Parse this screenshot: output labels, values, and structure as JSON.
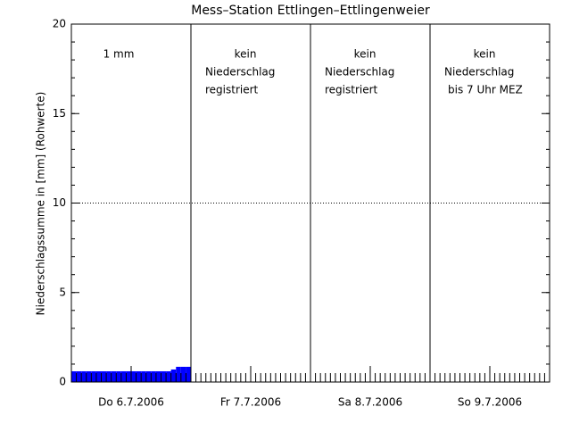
{
  "chart_data": {
    "type": "bar",
    "title": "Mess–Station Ettlingen–Ettlingenweier",
    "y_label": "Niederschlagssumme in [mm] (Rohwerte)",
    "categories": [
      "Do 6.7.2006",
      "Fr 7.7.2006",
      "Sa 8.7.2006",
      "So 9.7.2006"
    ],
    "annotations": [
      [
        "1 mm"
      ],
      [
        "kein",
        "Niederschlag",
        "registriert"
      ],
      [
        "kein",
        "Niederschlag",
        "registriert"
      ],
      [
        "kein",
        "Niederschlag",
        "bis 7 Uhr MEZ"
      ]
    ],
    "x": [
      0,
      1,
      2,
      3,
      4,
      5,
      6,
      7,
      8,
      9,
      10,
      11,
      12,
      13,
      14,
      15,
      16,
      17,
      18,
      19,
      20,
      21,
      22,
      23
    ],
    "values": [
      0.6,
      0.6,
      0.6,
      0.6,
      0.6,
      0.6,
      0.6,
      0.6,
      0.6,
      0.6,
      0.6,
      0.6,
      0.6,
      0.6,
      0.6,
      0.6,
      0.6,
      0.6,
      0.6,
      0.6,
      0.7,
      0.85,
      0.85,
      0.85
    ],
    "color": "#0000ff",
    "xlim": [
      0,
      96
    ],
    "ylim": [
      0,
      20
    ],
    "yticks": [
      0,
      5,
      10,
      15,
      20
    ],
    "grid_lines": [
      10
    ]
  }
}
